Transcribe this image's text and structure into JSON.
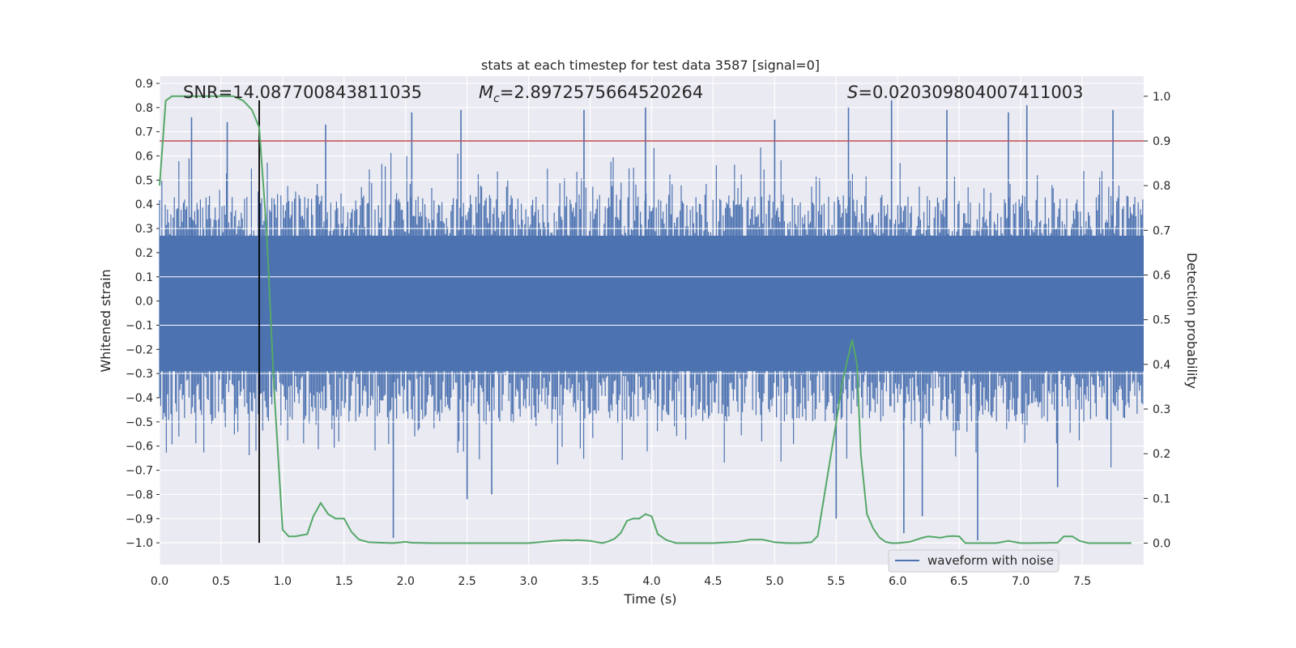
{
  "chart_data": {
    "type": "line",
    "title": "stats at each timestep for test data 3587 [signal=0]",
    "xlabel": "Time (s)",
    "ylabel": "Whitened strain",
    "y2label": "Detection probability",
    "xlim": [
      0.0,
      8.0
    ],
    "ylim": [
      -1.09,
      0.93
    ],
    "y2lim": [
      -0.048,
      1.045
    ],
    "xticks": [
      "0.0",
      "0.5",
      "1.0",
      "1.5",
      "2.0",
      "2.5",
      "3.0",
      "3.5",
      "4.0",
      "4.5",
      "5.0",
      "5.5",
      "6.0",
      "6.5",
      "7.0",
      "7.5"
    ],
    "yticks": [
      "0.9",
      "0.8",
      "0.7",
      "0.6",
      "0.5",
      "0.4",
      "0.3",
      "0.2",
      "0.1",
      "0.0",
      "−0.1",
      "−0.2",
      "−0.3",
      "−0.4",
      "−0.5",
      "−0.6",
      "−0.7",
      "−0.8",
      "−0.9",
      "−1.0"
    ],
    "y2ticks": [
      "1.0",
      "0.9",
      "0.8",
      "0.7",
      "0.6",
      "0.5",
      "0.4",
      "0.3",
      "0.2",
      "0.1",
      "0.0"
    ],
    "annotations": {
      "snr": "SNR=14.087700843811035",
      "mc_symbol": "M",
      "mc_sub": "c",
      "mc_value": "=2.8972575664520264",
      "s_symbol": "S",
      "s_value": "=0.020309804007411003"
    },
    "threshold": {
      "axis": "y2",
      "value": 0.9,
      "color": "#c44e52"
    },
    "vline": {
      "x": 0.81,
      "y_from": -1.0,
      "y_to": 0.83,
      "color": "#000000"
    },
    "series": [
      {
        "name": "waveform with noise",
        "axis": "y",
        "color": "#4c72b0",
        "description": "noise band, envelope approx ±0.45 with spikes to +0.83 / -0.99",
        "spikes": [
          [
            0.26,
            0.76
          ],
          [
            0.55,
            0.74
          ],
          [
            1.35,
            0.73
          ],
          [
            1.9,
            -0.98
          ],
          [
            2.05,
            0.78
          ],
          [
            2.45,
            0.79
          ],
          [
            2.5,
            -0.82
          ],
          [
            2.7,
            -0.8
          ],
          [
            3.45,
            0.79
          ],
          [
            3.95,
            0.8
          ],
          [
            5.0,
            0.75
          ],
          [
            5.5,
            -0.9
          ],
          [
            5.6,
            0.8
          ],
          [
            5.95,
            0.83
          ],
          [
            6.05,
            -0.96
          ],
          [
            6.2,
            -0.89
          ],
          [
            6.4,
            0.79
          ],
          [
            6.65,
            -0.99
          ],
          [
            6.9,
            0.78
          ],
          [
            7.05,
            0.81
          ],
          [
            7.3,
            -0.77
          ],
          [
            7.75,
            0.79
          ]
        ]
      },
      {
        "name": "detection probability",
        "axis": "y2",
        "color": "#55a868",
        "x": [
          0.0,
          0.05,
          0.1,
          0.2,
          0.3,
          0.4,
          0.5,
          0.6,
          0.68,
          0.75,
          0.81,
          0.87,
          0.93,
          1.0,
          1.05,
          1.1,
          1.2,
          1.25,
          1.31,
          1.37,
          1.43,
          1.5,
          1.56,
          1.62,
          1.7,
          1.8,
          1.9,
          2.0,
          2.05,
          2.2,
          2.4,
          2.6,
          2.8,
          3.0,
          3.2,
          3.3,
          3.35,
          3.4,
          3.5,
          3.6,
          3.65,
          3.7,
          3.75,
          3.8,
          3.85,
          3.9,
          3.95,
          4.0,
          4.05,
          4.12,
          4.2,
          4.3,
          4.5,
          4.7,
          4.8,
          4.9,
          5.0,
          5.1,
          5.2,
          5.3,
          5.35,
          5.4,
          5.5,
          5.55,
          5.6,
          5.63,
          5.67,
          5.7,
          5.75,
          5.8,
          5.85,
          5.9,
          5.95,
          6.0,
          6.1,
          6.2,
          6.25,
          6.35,
          6.4,
          6.45,
          6.5,
          6.55,
          6.6,
          6.8,
          6.9,
          7.0,
          7.1,
          7.3,
          7.35,
          7.42,
          7.48,
          7.55,
          7.7,
          7.9
        ],
        "y": [
          0.8,
          0.99,
          1.0,
          1.0,
          1.0,
          1.0,
          1.0,
          1.0,
          0.99,
          0.97,
          0.93,
          0.7,
          0.35,
          0.03,
          0.015,
          0.015,
          0.02,
          0.06,
          0.09,
          0.065,
          0.055,
          0.055,
          0.025,
          0.008,
          0.002,
          0.001,
          0.0,
          0.003,
          0.001,
          0.0,
          0.0,
          0.0,
          0.0,
          0.0,
          0.005,
          0.007,
          0.006,
          0.007,
          0.005,
          0.0,
          0.004,
          0.01,
          0.023,
          0.05,
          0.055,
          0.055,
          0.065,
          0.06,
          0.02,
          0.007,
          0.0,
          0.0,
          0.0,
          0.003,
          0.008,
          0.008,
          0.002,
          0.0,
          0.0,
          0.002,
          0.016,
          0.1,
          0.27,
          0.36,
          0.42,
          0.455,
          0.4,
          0.2,
          0.065,
          0.033,
          0.013,
          0.003,
          0.0,
          0.0,
          0.003,
          0.012,
          0.015,
          0.012,
          0.015,
          0.016,
          0.015,
          0.0,
          0.0,
          0.0,
          0.005,
          0.0,
          0.0,
          0.001,
          0.015,
          0.015,
          0.005,
          0.0,
          0.0,
          0.0
        ]
      }
    ],
    "legend": {
      "location": "lower-right",
      "entries": [
        "waveform with noise"
      ]
    }
  }
}
